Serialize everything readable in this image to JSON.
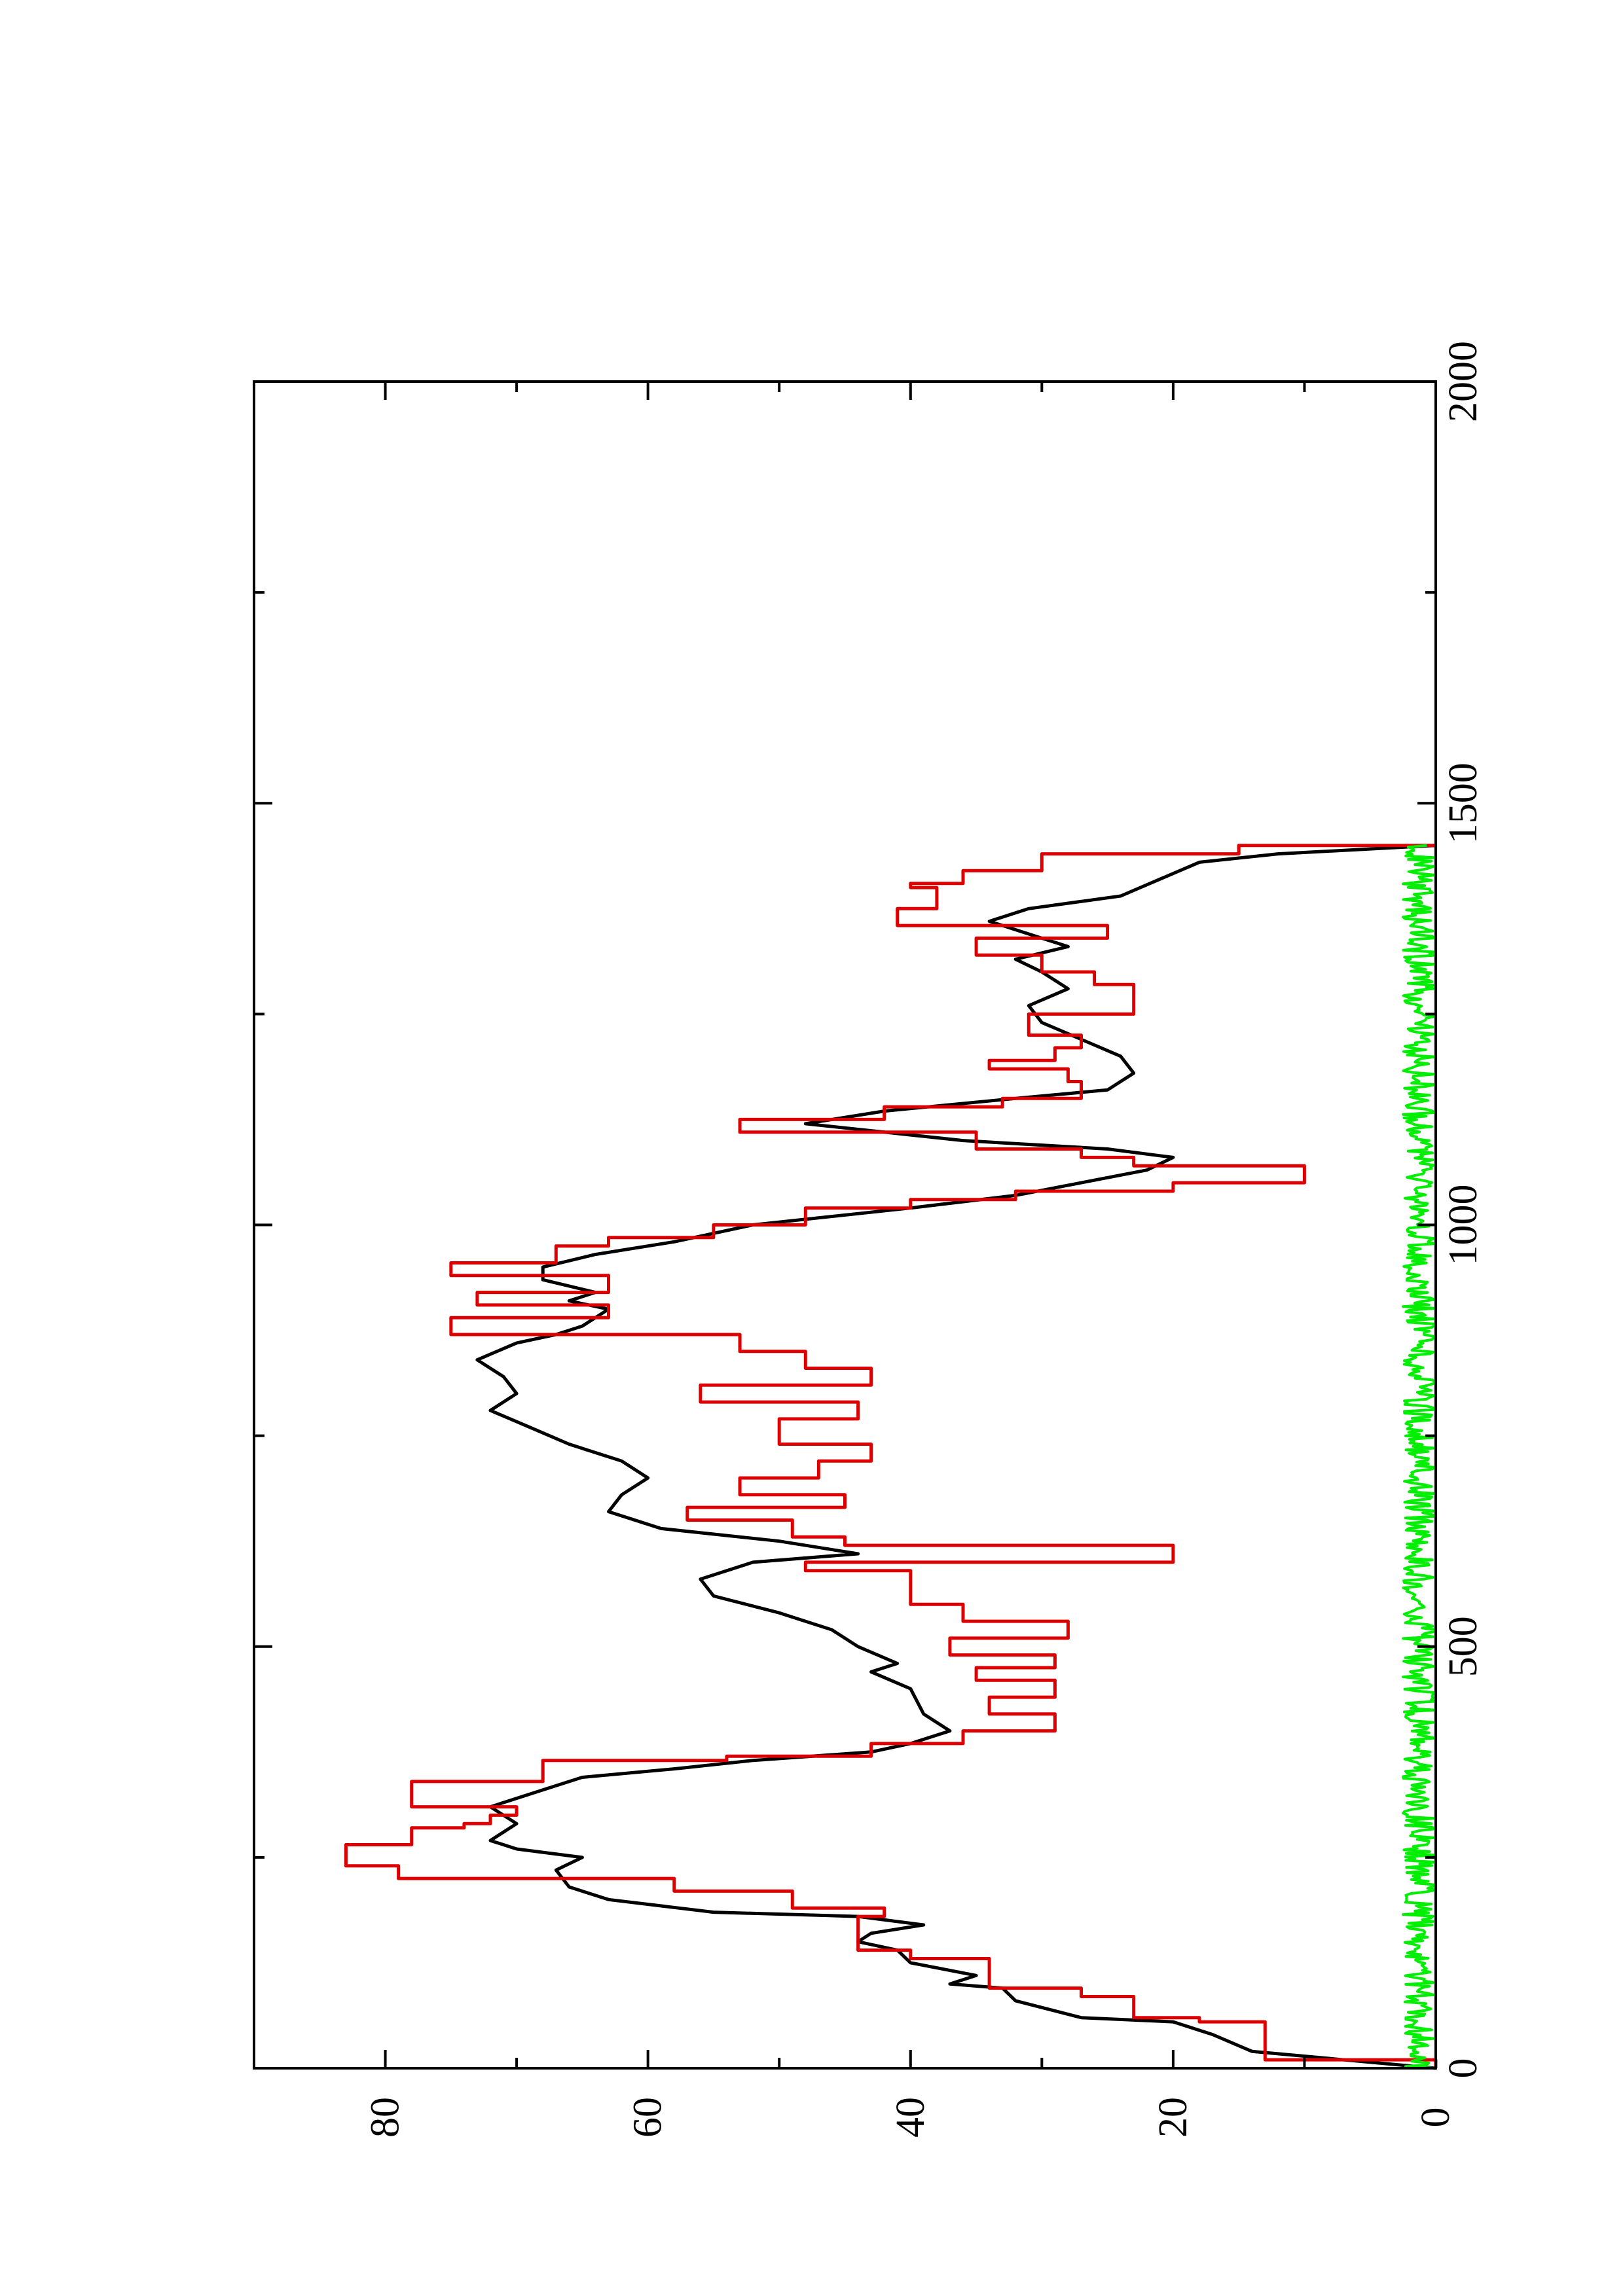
{
  "chart_data": {
    "type": "line",
    "title": "",
    "xlabel": "",
    "ylabel": "",
    "xlim": [
      0,
      2000
    ],
    "ylim": [
      0,
      90
    ],
    "x_ticks": [
      0,
      500,
      1000,
      1500,
      2000
    ],
    "y_ticks": [
      0,
      20,
      40,
      60,
      80
    ],
    "x_tick_labels": [
      "0",
      "500",
      "1000",
      "1500",
      "2000"
    ],
    "y_tick_labels": [
      "0",
      "20",
      "40",
      "60",
      "80"
    ],
    "orientation": "rotated 90 degrees counter-clockwise",
    "grid": false,
    "legend": "none",
    "series": [
      {
        "color": "#000000",
        "style": "line",
        "points": [
          [
            0,
            0
          ],
          [
            20,
            14
          ],
          [
            40,
            17
          ],
          [
            55,
            20
          ],
          [
            60,
            27
          ],
          [
            80,
            32
          ],
          [
            95,
            33
          ],
          [
            100,
            37
          ],
          [
            110,
            35
          ],
          [
            125,
            40
          ],
          [
            140,
            41
          ],
          [
            150,
            44
          ],
          [
            160,
            43
          ],
          [
            170,
            39
          ],
          [
            180,
            44
          ],
          [
            185,
            55
          ],
          [
            200,
            63
          ],
          [
            215,
            66
          ],
          [
            235,
            67
          ],
          [
            250,
            65
          ],
          [
            260,
            70
          ],
          [
            270,
            72
          ],
          [
            290,
            70
          ],
          [
            310,
            72
          ],
          [
            330,
            68
          ],
          [
            345,
            65
          ],
          [
            355,
            58
          ],
          [
            365,
            52
          ],
          [
            375,
            43
          ],
          [
            385,
            40
          ],
          [
            400,
            37
          ],
          [
            420,
            39
          ],
          [
            450,
            40
          ],
          [
            470,
            43
          ],
          [
            480,
            41
          ],
          [
            500,
            44
          ],
          [
            520,
            46
          ],
          [
            540,
            50
          ],
          [
            560,
            55
          ],
          [
            580,
            56
          ],
          [
            600,
            52
          ],
          [
            610,
            44
          ],
          [
            625,
            50
          ],
          [
            640,
            59
          ],
          [
            660,
            63
          ],
          [
            680,
            62
          ],
          [
            700,
            60
          ],
          [
            720,
            62
          ],
          [
            740,
            66
          ],
          [
            760,
            69
          ],
          [
            780,
            72
          ],
          [
            800,
            70
          ],
          [
            820,
            71
          ],
          [
            840,
            73
          ],
          [
            860,
            70
          ],
          [
            870,
            67
          ],
          [
            880,
            65
          ],
          [
            900,
            63
          ],
          [
            910,
            66
          ],
          [
            920,
            64
          ],
          [
            935,
            68
          ],
          [
            950,
            68
          ],
          [
            965,
            64
          ],
          [
            980,
            58
          ],
          [
            1000,
            52
          ],
          [
            1020,
            40
          ],
          [
            1035,
            32
          ],
          [
            1050,
            27
          ],
          [
            1065,
            22
          ],
          [
            1080,
            20
          ],
          [
            1090,
            25
          ],
          [
            1100,
            36
          ],
          [
            1120,
            48
          ],
          [
            1135,
            42
          ],
          [
            1150,
            32
          ],
          [
            1160,
            25
          ],
          [
            1180,
            23
          ],
          [
            1200,
            24
          ],
          [
            1220,
            27
          ],
          [
            1240,
            30
          ],
          [
            1260,
            31
          ],
          [
            1280,
            28
          ],
          [
            1300,
            30
          ],
          [
            1315,
            32
          ],
          [
            1330,
            28
          ],
          [
            1345,
            31
          ],
          [
            1360,
            34
          ],
          [
            1375,
            31
          ],
          [
            1390,
            24
          ],
          [
            1410,
            21
          ],
          [
            1430,
            18
          ],
          [
            1440,
            12
          ],
          [
            1450,
            0
          ]
        ]
      },
      {
        "color": "#dd0000",
        "style": "step",
        "points": [
          [
            0,
            0
          ],
          [
            10,
            13
          ],
          [
            55,
            18
          ],
          [
            60,
            23
          ],
          [
            85,
            27
          ],
          [
            95,
            34
          ],
          [
            130,
            40
          ],
          [
            140,
            44
          ],
          [
            170,
            44
          ],
          [
            180,
            42
          ],
          [
            190,
            49
          ],
          [
            210,
            58
          ],
          [
            225,
            79
          ],
          [
            240,
            83
          ],
          [
            265,
            78
          ],
          [
            285,
            74
          ],
          [
            290,
            72
          ],
          [
            300,
            70
          ],
          [
            310,
            78
          ],
          [
            340,
            68
          ],
          [
            365,
            54
          ],
          [
            370,
            43
          ],
          [
            385,
            36
          ],
          [
            400,
            29
          ],
          [
            420,
            34
          ],
          [
            440,
            29
          ],
          [
            460,
            35
          ],
          [
            475,
            29
          ],
          [
            490,
            37
          ],
          [
            510,
            28
          ],
          [
            530,
            36
          ],
          [
            550,
            40
          ],
          [
            570,
            40
          ],
          [
            590,
            48
          ],
          [
            600,
            20
          ],
          [
            620,
            45
          ],
          [
            630,
            49
          ],
          [
            650,
            57
          ],
          [
            665,
            45
          ],
          [
            680,
            53
          ],
          [
            700,
            47
          ],
          [
            720,
            43
          ],
          [
            740,
            50
          ],
          [
            760,
            50
          ],
          [
            770,
            44
          ],
          [
            790,
            56
          ],
          [
            810,
            43
          ],
          [
            830,
            48
          ],
          [
            850,
            53
          ],
          [
            870,
            75
          ],
          [
            890,
            63
          ],
          [
            905,
            73
          ],
          [
            920,
            63
          ],
          [
            940,
            75
          ],
          [
            955,
            67
          ],
          [
            975,
            63
          ],
          [
            985,
            55
          ],
          [
            1000,
            48
          ],
          [
            1020,
            40
          ],
          [
            1030,
            32
          ],
          [
            1040,
            20
          ],
          [
            1050,
            10
          ],
          [
            1060,
            10
          ],
          [
            1070,
            23
          ],
          [
            1080,
            27
          ],
          [
            1090,
            35
          ],
          [
            1110,
            53
          ],
          [
            1125,
            42
          ],
          [
            1140,
            33
          ],
          [
            1150,
            27
          ],
          [
            1170,
            28
          ],
          [
            1185,
            34
          ],
          [
            1195,
            29
          ],
          [
            1210,
            27
          ],
          [
            1225,
            31
          ],
          [
            1250,
            23
          ],
          [
            1285,
            26
          ],
          [
            1300,
            30
          ],
          [
            1320,
            35
          ],
          [
            1340,
            25
          ],
          [
            1355,
            41
          ],
          [
            1375,
            38
          ],
          [
            1400,
            40
          ],
          [
            1405,
            36
          ],
          [
            1420,
            30
          ],
          [
            1440,
            15
          ],
          [
            1450,
            0
          ]
        ]
      },
      {
        "color": "#00ee00",
        "style": "noisy",
        "x_range": [
          0,
          1450
        ],
        "y_range": [
          0,
          2.5
        ]
      }
    ]
  },
  "axis_labels": {
    "x_ticks": [
      "0",
      "500",
      "1000",
      "1500",
      "2000"
    ],
    "y_ticks": [
      "0",
      "20",
      "40",
      "60",
      "80"
    ]
  },
  "colors": {
    "axis": "#000000",
    "background": "#ffffff"
  }
}
